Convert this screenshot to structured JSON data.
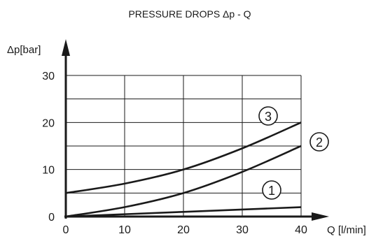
{
  "chart_data": {
    "type": "line",
    "title": "PRESSURE DROPS Δp - Q",
    "xlabel": "Q [l/min]",
    "ylabel": "Δp[bar]",
    "xlim": [
      0,
      40
    ],
    "ylim": [
      0,
      30
    ],
    "xticks": [
      0,
      10,
      20,
      30,
      40
    ],
    "yticks": [
      0,
      10,
      20,
      30
    ],
    "grid": true,
    "series": [
      {
        "name": "1",
        "x": [
          0,
          10,
          20,
          30,
          40
        ],
        "y": [
          0,
          0.5,
          1.0,
          1.5,
          2.0
        ]
      },
      {
        "name": "2",
        "x": [
          0,
          10,
          20,
          30,
          40
        ],
        "y": [
          0,
          2,
          5,
          9.5,
          15
        ]
      },
      {
        "name": "3",
        "x": [
          0,
          10,
          20,
          30,
          40
        ],
        "y": [
          5,
          7,
          10,
          14.5,
          20
        ]
      }
    ]
  }
}
